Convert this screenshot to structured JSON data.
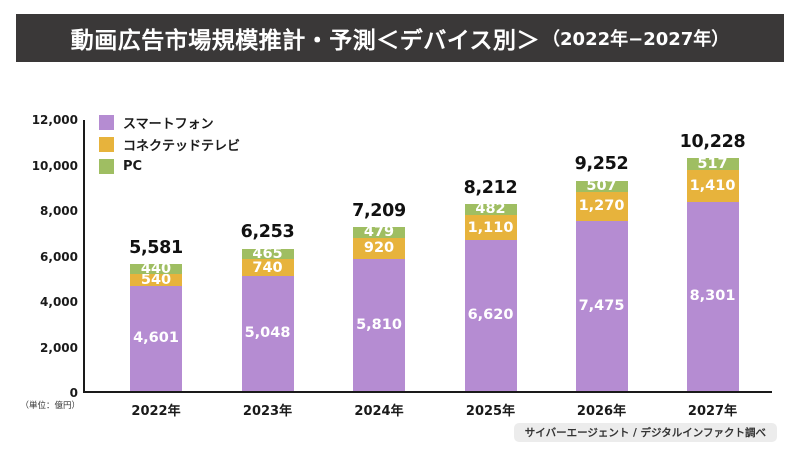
{
  "header": {
    "title_main": "動画広告市場規模推計・予測＜デバイス別＞",
    "title_paren": "（2022年−2027年）"
  },
  "chart_data": {
    "type": "bar",
    "stacked": true,
    "title": "動画広告市場規模推計・予測＜デバイス別＞（2022年−2027年）",
    "unit_label": "（単位：億円）",
    "categories": [
      "2022年",
      "2023年",
      "2024年",
      "2025年",
      "2026年",
      "2027年"
    ],
    "series": [
      {
        "name": "スマートフォン",
        "color": "#b58cd2",
        "values": [
          4601,
          5048,
          5810,
          6620,
          7475,
          8301
        ]
      },
      {
        "name": "コネクテッドテレビ",
        "color": "#e7b33c",
        "values": [
          540,
          740,
          920,
          1110,
          1270,
          1410
        ]
      },
      {
        "name": "PC",
        "color": "#9fbe62",
        "values": [
          440,
          465,
          479,
          482,
          507,
          517
        ]
      }
    ],
    "totals": [
      5581,
      6253,
      7209,
      8212,
      9252,
      10228
    ],
    "ylim": [
      0,
      12000
    ],
    "ytick_values": [
      0,
      2000,
      4000,
      6000,
      8000,
      10000,
      12000
    ],
    "yticks": [
      "0",
      "2,000",
      "4,000",
      "6,000",
      "8,000",
      "10,000",
      "12,000"
    ],
    "legend_position": "top-left",
    "grid": false
  },
  "footer": {
    "source": "サイバーエージェント / デジタルインファクト調べ"
  }
}
